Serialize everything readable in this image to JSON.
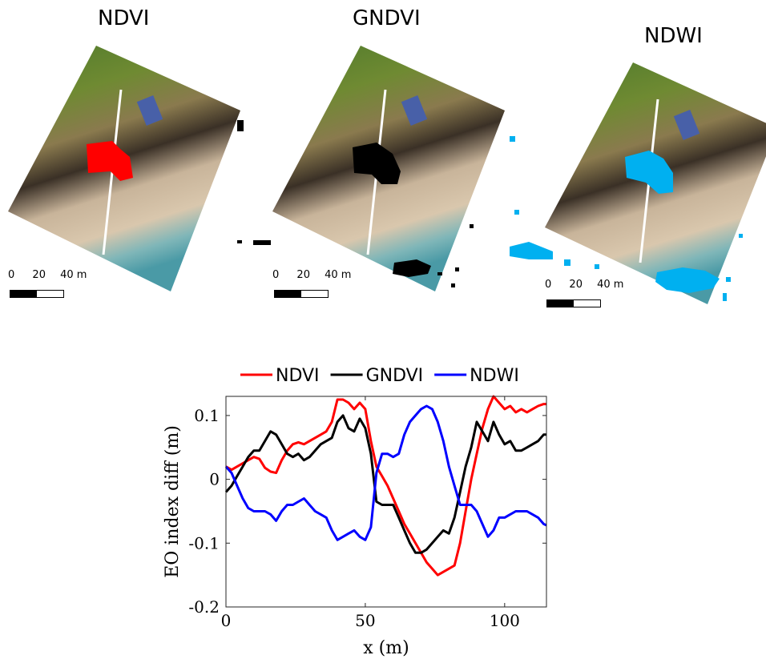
{
  "panels": [
    {
      "title": "NDVI",
      "overlay_color": "#ff0000",
      "scale_labels": [
        "0",
        "20",
        "40 m"
      ]
    },
    {
      "title": "GNDVI",
      "overlay_color": "#000000",
      "scale_labels": [
        "0",
        "20",
        "40 m"
      ]
    },
    {
      "title": "NDWI",
      "overlay_color": "#00b0f0",
      "scale_labels": [
        "0",
        "20",
        "40 m"
      ]
    }
  ],
  "chart_data": {
    "type": "line",
    "xlabel": "x (m)",
    "ylabel": "EO index diff (m)",
    "xlim": [
      0,
      115
    ],
    "ylim": [
      -0.2,
      0.13
    ],
    "xticks": [
      0,
      50,
      100
    ],
    "yticks": [
      -0.2,
      -0.1,
      0,
      0.1
    ],
    "ytick_labels": [
      "-0.2",
      "-0.1",
      "0",
      "0.1"
    ],
    "legend_position": "top",
    "x": [
      0,
      2,
      4,
      6,
      8,
      10,
      12,
      14,
      16,
      18,
      20,
      22,
      24,
      26,
      28,
      30,
      32,
      34,
      36,
      38,
      40,
      42,
      44,
      46,
      48,
      50,
      52,
      54,
      56,
      58,
      60,
      62,
      64,
      66,
      68,
      70,
      72,
      74,
      76,
      78,
      80,
      82,
      84,
      86,
      88,
      90,
      92,
      94,
      96,
      98,
      100,
      102,
      104,
      106,
      108,
      110,
      112,
      114,
      115
    ],
    "series": [
      {
        "name": "NDVI",
        "color": "#ff0000",
        "values": [
          0.02,
          0.015,
          0.02,
          0.025,
          0.03,
          0.035,
          0.032,
          0.018,
          0.012,
          0.01,
          0.03,
          0.045,
          0.055,
          0.058,
          0.055,
          0.06,
          0.065,
          0.07,
          0.075,
          0.09,
          0.125,
          0.125,
          0.12,
          0.11,
          0.12,
          0.11,
          0.06,
          0.02,
          0.005,
          -0.01,
          -0.03,
          -0.05,
          -0.07,
          -0.085,
          -0.1,
          -0.115,
          -0.13,
          -0.14,
          -0.15,
          -0.145,
          -0.14,
          -0.135,
          -0.1,
          -0.05,
          0,
          0.04,
          0.08,
          0.11,
          0.13,
          0.12,
          0.11,
          0.115,
          0.105,
          0.11,
          0.105,
          0.11,
          0.115,
          0.118,
          0.118
        ]
      },
      {
        "name": "GNDVI",
        "color": "#000000",
        "values": [
          -0.02,
          -0.01,
          0.005,
          0.02,
          0.035,
          0.045,
          0.045,
          0.06,
          0.075,
          0.07,
          0.055,
          0.04,
          0.035,
          0.04,
          0.03,
          0.035,
          0.045,
          0.055,
          0.06,
          0.065,
          0.09,
          0.1,
          0.08,
          0.075,
          0.095,
          0.08,
          0.04,
          -0.035,
          -0.04,
          -0.04,
          -0.04,
          -0.06,
          -0.08,
          -0.1,
          -0.115,
          -0.115,
          -0.11,
          -0.1,
          -0.09,
          -0.08,
          -0.085,
          -0.06,
          -0.02,
          0.02,
          0.05,
          0.09,
          0.075,
          0.06,
          0.09,
          0.07,
          0.055,
          0.06,
          0.045,
          0.045,
          0.05,
          0.055,
          0.06,
          0.07,
          0.07
        ]
      },
      {
        "name": "NDWI",
        "color": "#0000ff",
        "values": [
          0.02,
          0.01,
          -0.01,
          -0.03,
          -0.045,
          -0.05,
          -0.05,
          -0.05,
          -0.055,
          -0.065,
          -0.05,
          -0.04,
          -0.04,
          -0.035,
          -0.03,
          -0.04,
          -0.05,
          -0.055,
          -0.06,
          -0.08,
          -0.095,
          -0.09,
          -0.085,
          -0.08,
          -0.09,
          -0.095,
          -0.075,
          0.01,
          0.04,
          0.04,
          0.035,
          0.04,
          0.07,
          0.09,
          0.1,
          0.11,
          0.115,
          0.11,
          0.09,
          0.06,
          0.02,
          -0.01,
          -0.04,
          -0.04,
          -0.04,
          -0.05,
          -0.07,
          -0.09,
          -0.08,
          -0.06,
          -0.06,
          -0.055,
          -0.05,
          -0.05,
          -0.05,
          -0.055,
          -0.06,
          -0.07,
          -0.072
        ]
      }
    ]
  }
}
